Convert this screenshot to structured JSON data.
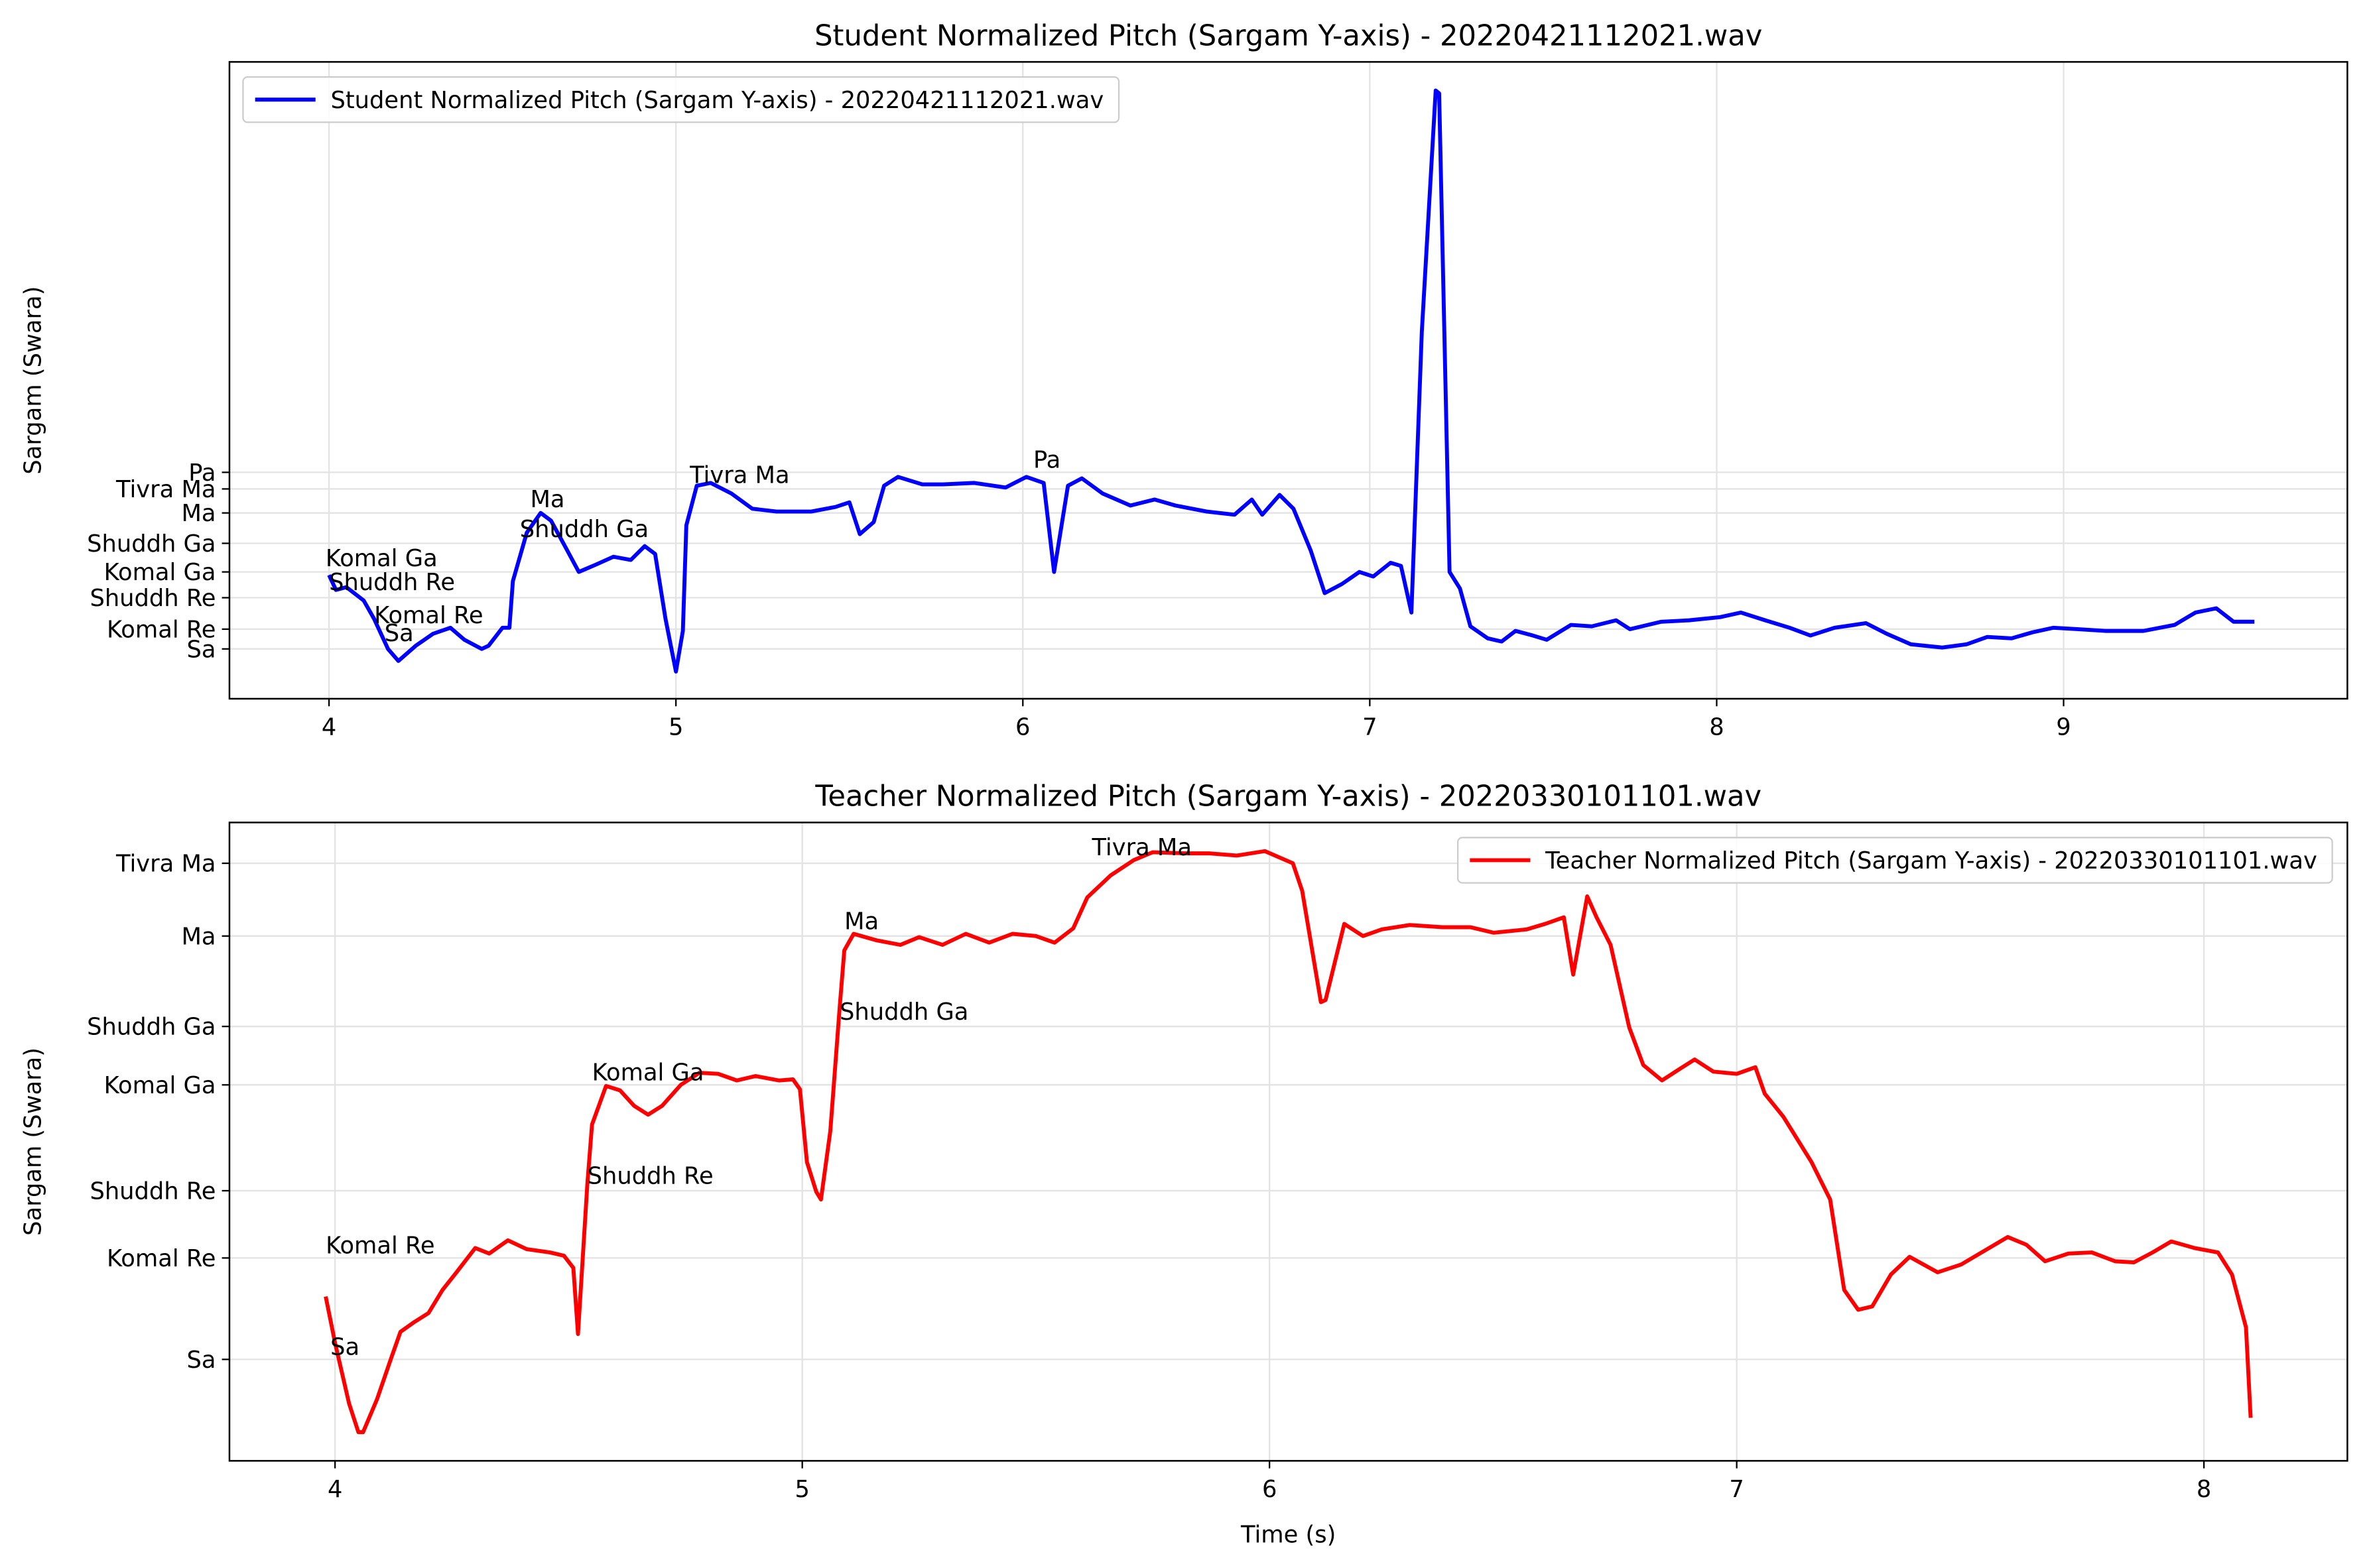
{
  "chart_data": [
    {
      "type": "line",
      "title": "Student Normalized Pitch (Sargam Y-axis) - 20220421112021.wav",
      "ylabel": "Sargam (Swara)",
      "xlim": [
        3.713,
        9.818
      ],
      "ylim": [
        0.859,
        2.662
      ],
      "xticks": [
        4,
        5,
        6,
        7,
        8,
        9
      ],
      "yticks": [
        {
          "value": 1.0,
          "label": "Sa"
        },
        {
          "value": 1.056,
          "label": "Komal Re"
        },
        {
          "value": 1.145,
          "label": "Shuddh Re"
        },
        {
          "value": 1.218,
          "label": "Komal Ga"
        },
        {
          "value": 1.299,
          "label": "Shuddh Ga"
        },
        {
          "value": 1.385,
          "label": "Ma"
        },
        {
          "value": 1.453,
          "label": "Tivra Ma"
        },
        {
          "value": 1.5,
          "label": "Pa"
        }
      ],
      "grid": true,
      "legend": "upper left",
      "x": [
        4.0,
        4.02,
        4.05,
        4.1,
        4.13,
        4.17,
        4.2,
        4.25,
        4.3,
        4.35,
        4.39,
        4.44,
        4.46,
        4.5,
        4.52,
        4.53,
        4.57,
        4.61,
        4.64,
        4.68,
        4.72,
        4.77,
        4.82,
        4.87,
        4.91,
        4.94,
        4.97,
        5.0,
        5.02,
        5.03,
        5.06,
        5.1,
        5.16,
        5.22,
        5.29,
        5.39,
        5.46,
        5.5,
        5.53,
        5.57,
        5.6,
        5.64,
        5.71,
        5.77,
        5.86,
        5.95,
        6.01,
        6.06,
        6.09,
        6.13,
        6.17,
        6.23,
        6.31,
        6.38,
        6.44,
        6.53,
        6.61,
        6.66,
        6.69,
        6.74,
        6.78,
        6.83,
        6.87,
        6.92,
        6.97,
        7.01,
        7.06,
        7.09,
        7.12,
        7.15,
        7.19,
        7.2,
        7.23,
        7.26,
        7.29,
        7.34,
        7.38,
        7.42,
        7.47,
        7.51,
        7.58,
        7.64,
        7.71,
        7.75,
        7.84,
        7.92,
        8.01,
        8.07,
        8.14,
        8.21,
        8.27,
        8.34,
        8.43,
        8.49,
        8.56,
        8.65,
        8.72,
        8.78,
        8.85,
        8.91,
        8.97,
        9.04,
        9.12,
        9.23,
        9.32,
        9.38,
        9.44,
        9.49,
        9.55
      ],
      "series": [
        {
          "name": "Student Normalized Pitch (Sargam Y-axis) - 20220421112021.wav",
          "color": "#0000ff",
          "values": [
            1.209,
            1.167,
            1.175,
            1.137,
            1.085,
            1.0,
            0.966,
            1.009,
            1.043,
            1.06,
            1.026,
            1.0,
            1.009,
            1.06,
            1.06,
            1.192,
            1.329,
            1.385,
            1.363,
            1.291,
            1.218,
            1.239,
            1.261,
            1.252,
            1.291,
            1.269,
            1.085,
            0.936,
            1.051,
            1.35,
            1.462,
            1.47,
            1.44,
            1.397,
            1.389,
            1.389,
            1.402,
            1.415,
            1.325,
            1.359,
            1.462,
            1.487,
            1.466,
            1.466,
            1.47,
            1.457,
            1.487,
            1.47,
            1.218,
            1.462,
            1.483,
            1.44,
            1.406,
            1.423,
            1.406,
            1.389,
            1.38,
            1.423,
            1.38,
            1.436,
            1.397,
            1.278,
            1.158,
            1.184,
            1.218,
            1.205,
            1.244,
            1.235,
            1.103,
            1.897,
            2.581,
            2.573,
            1.218,
            1.171,
            1.064,
            1.03,
            1.021,
            1.051,
            1.038,
            1.026,
            1.068,
            1.064,
            1.081,
            1.056,
            1.077,
            1.081,
            1.09,
            1.103,
            1.081,
            1.06,
            1.038,
            1.06,
            1.073,
            1.043,
            1.013,
            1.004,
            1.013,
            1.034,
            1.03,
            1.047,
            1.06,
            1.056,
            1.051,
            1.051,
            1.068,
            1.103,
            1.115,
            1.077,
            1.077
          ]
        }
      ],
      "annotations": [
        {
          "text": "Komal Ga",
          "x": 3.99,
          "y": 1.256
        },
        {
          "text": "Shuddh Re",
          "x": 4.0,
          "y": 1.188
        },
        {
          "text": "Komal Re",
          "x": 4.13,
          "y": 1.094
        },
        {
          "text": "Sa",
          "x": 4.16,
          "y": 1.043
        },
        {
          "text": "Ma",
          "x": 4.58,
          "y": 1.423
        },
        {
          "text": "Shuddh Ga",
          "x": 4.55,
          "y": 1.338
        },
        {
          "text": "Tivra Ma",
          "x": 5.04,
          "y": 1.491
        },
        {
          "text": "Pa",
          "x": 6.03,
          "y": 1.534
        }
      ]
    },
    {
      "type": "line",
      "title": "Teacher Normalized Pitch (Sargam Y-axis) - 20220330101101.wav",
      "xlabel": "Time (s)",
      "ylabel": "Sargam (Swara)",
      "xlim": [
        3.774,
        8.307
      ],
      "ylim": [
        0.908,
        1.487
      ],
      "xticks": [
        4,
        5,
        6,
        7,
        8
      ],
      "yticks": [
        {
          "value": 1.0,
          "label": "Sa"
        },
        {
          "value": 1.092,
          "label": "Komal Re"
        },
        {
          "value": 1.153,
          "label": "Shuddh Re"
        },
        {
          "value": 1.249,
          "label": "Komal Ga"
        },
        {
          "value": 1.302,
          "label": "Shuddh Ga"
        },
        {
          "value": 1.384,
          "label": "Ma"
        },
        {
          "value": 1.45,
          "label": "Tivra Ma"
        }
      ],
      "grid": true,
      "legend": "upper right",
      "x": [
        3.98,
        4.0,
        4.03,
        4.05,
        4.06,
        4.09,
        4.12,
        4.14,
        4.17,
        4.2,
        4.23,
        4.26,
        4.3,
        4.33,
        4.37,
        4.41,
        4.46,
        4.49,
        4.51,
        4.52,
        4.54,
        4.55,
        4.58,
        4.61,
        4.64,
        4.67,
        4.7,
        4.74,
        4.78,
        4.82,
        4.86,
        4.9,
        4.95,
        4.98,
        4.995,
        5.01,
        5.03,
        5.04,
        5.06,
        5.08,
        5.09,
        5.11,
        5.16,
        5.21,
        5.25,
        5.3,
        5.35,
        5.4,
        5.45,
        5.5,
        5.54,
        5.58,
        5.61,
        5.66,
        5.71,
        5.75,
        5.82,
        5.87,
        5.93,
        5.99,
        6.05,
        6.07,
        6.11,
        6.12,
        6.16,
        6.2,
        6.24,
        6.3,
        6.37,
        6.43,
        6.48,
        6.55,
        6.59,
        6.63,
        6.65,
        6.68,
        6.7,
        6.73,
        6.77,
        6.8,
        6.84,
        6.88,
        6.91,
        6.95,
        7.0,
        7.04,
        7.06,
        7.1,
        7.16,
        7.2,
        7.23,
        7.26,
        7.29,
        7.33,
        7.37,
        7.43,
        7.48,
        7.54,
        7.58,
        7.62,
        7.66,
        7.71,
        7.76,
        7.81,
        7.85,
        7.89,
        7.93,
        7.98,
        8.03,
        8.06,
        8.09,
        8.1
      ],
      "series": [
        {
          "name": "Teacher Normalized Pitch (Sargam Y-axis) - 20220330101101.wav",
          "color": "#ff0000",
          "values": [
            1.057,
            1.015,
            0.96,
            0.934,
            0.934,
            0.964,
            1.001,
            1.025,
            1.034,
            1.042,
            1.063,
            1.079,
            1.101,
            1.096,
            1.108,
            1.1,
            1.097,
            1.094,
            1.083,
            1.023,
            1.159,
            1.213,
            1.248,
            1.244,
            1.23,
            1.222,
            1.23,
            1.249,
            1.26,
            1.259,
            1.253,
            1.257,
            1.253,
            1.254,
            1.245,
            1.179,
            1.152,
            1.145,
            1.207,
            1.319,
            1.371,
            1.386,
            1.38,
            1.376,
            1.383,
            1.376,
            1.386,
            1.378,
            1.386,
            1.384,
            1.378,
            1.391,
            1.419,
            1.439,
            1.453,
            1.46,
            1.459,
            1.459,
            1.457,
            1.461,
            1.45,
            1.425,
            1.324,
            1.326,
            1.395,
            1.384,
            1.39,
            1.394,
            1.392,
            1.392,
            1.387,
            1.39,
            1.395,
            1.401,
            1.349,
            1.42,
            1.401,
            1.376,
            1.301,
            1.267,
            1.253,
            1.264,
            1.272,
            1.261,
            1.259,
            1.265,
            1.241,
            1.22,
            1.179,
            1.145,
            1.063,
            1.045,
            1.048,
            1.077,
            1.093,
            1.079,
            1.086,
            1.101,
            1.111,
            1.104,
            1.089,
            1.096,
            1.097,
            1.089,
            1.088,
            1.097,
            1.107,
            1.101,
            1.097,
            1.077,
            1.029,
            0.947
          ]
        }
      ],
      "annotations": [
        {
          "text": "Komal Re",
          "x": 3.98,
          "y": 1.103
        },
        {
          "text": "Sa",
          "x": 3.99,
          "y": 1.011
        },
        {
          "text": "Shuddh Re",
          "x": 4.54,
          "y": 1.166
        },
        {
          "text": "Komal Ga",
          "x": 4.55,
          "y": 1.26
        },
        {
          "text": "Shuddh Ga",
          "x": 5.08,
          "y": 1.315
        },
        {
          "text": "Ma",
          "x": 5.09,
          "y": 1.397
        },
        {
          "text": "Tivra Ma",
          "x": 5.62,
          "y": 1.464
        }
      ]
    }
  ]
}
